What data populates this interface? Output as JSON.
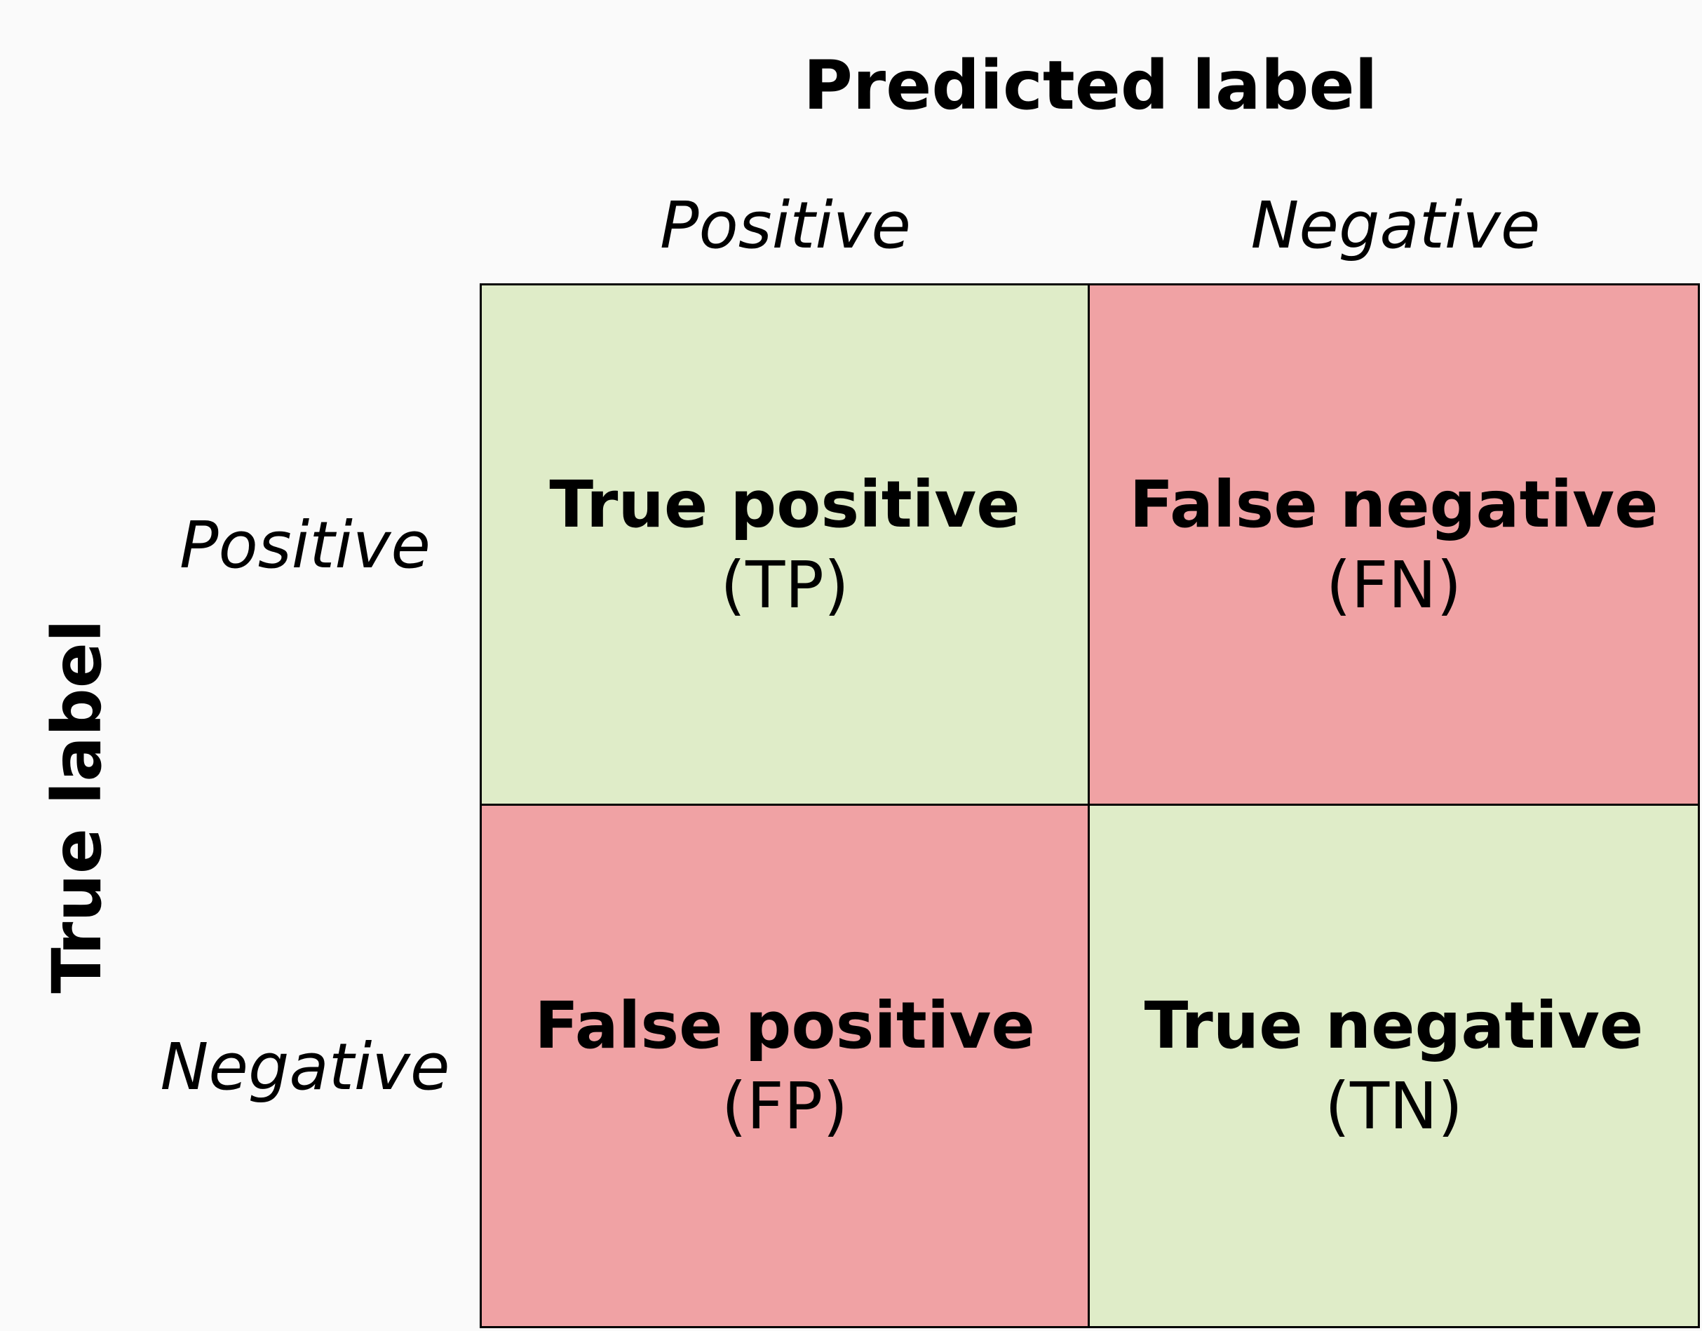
{
  "x_axis_title": "Predicted label",
  "y_axis_title": "True label",
  "columns": [
    "Positive",
    "Negative"
  ],
  "rows": [
    "Positive",
    "Negative"
  ],
  "colors": {
    "correct": "#dfecc8",
    "incorrect": "#f0a2a4",
    "background": "#fafafa"
  },
  "cells": [
    [
      {
        "title": "True positive",
        "abbr": "(TP)",
        "kind": "correct"
      },
      {
        "title": "False negative",
        "abbr": "(FN)",
        "kind": "incorrect"
      }
    ],
    [
      {
        "title": "False positive",
        "abbr": "(FP)",
        "kind": "incorrect"
      },
      {
        "title": "True negative",
        "abbr": "(TN)",
        "kind": "correct"
      }
    ]
  ]
}
